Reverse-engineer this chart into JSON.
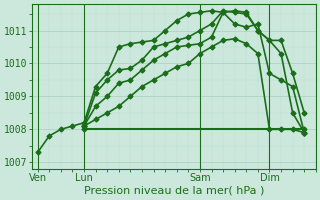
{
  "bg_color": "#cce8dc",
  "grid_color_major": "#aacfbf",
  "grid_color_minor": "#bbddd0",
  "line_color": "#1a6e1a",
  "xlabel": "Pression niveau de la mer( hPa )",
  "xlabel_fontsize": 8,
  "ylim": [
    1006.8,
    1011.8
  ],
  "yticks": [
    1007,
    1008,
    1009,
    1010,
    1011
  ],
  "tick_fontsize": 7,
  "xtick_labels": [
    "Ven",
    "Lun",
    "Sam",
    "Dim"
  ],
  "xtick_positions": [
    0,
    4,
    14,
    20
  ],
  "vline_positions": [
    0,
    4,
    14,
    20
  ],
  "xlim": [
    -0.5,
    24
  ],
  "series": [
    {
      "x": [
        0,
        1,
        2,
        3,
        4,
        5,
        6,
        7,
        8,
        9,
        10,
        11,
        12,
        13,
        14,
        15,
        16,
        17,
        18,
        19,
        20,
        21,
        22,
        23
      ],
      "y": [
        1007.3,
        1007.8,
        1008.0,
        1008.1,
        1008.2,
        1009.3,
        1009.7,
        1010.5,
        1010.6,
        1010.65,
        1010.7,
        1011.0,
        1011.3,
        1011.5,
        1011.55,
        1011.6,
        1011.55,
        1011.2,
        1011.1,
        1011.2,
        1009.7,
        1009.5,
        1009.3,
        1007.9
      ],
      "marker": "D",
      "markersize": 2.5,
      "linewidth": 1.2
    },
    {
      "x": [
        4,
        5,
        6,
        7,
        8,
        9,
        10,
        11,
        12,
        13,
        14,
        15,
        16,
        17,
        18,
        19,
        20,
        21,
        22,
        23
      ],
      "y": [
        1008.1,
        1009.1,
        1009.5,
        1009.8,
        1009.85,
        1010.1,
        1010.5,
        1010.6,
        1010.7,
        1010.8,
        1011.0,
        1011.2,
        1011.6,
        1011.55,
        1011.5,
        1011.0,
        1010.7,
        1010.7,
        1009.7,
        1008.5
      ],
      "marker": "D",
      "markersize": 2.5,
      "linewidth": 1.2
    },
    {
      "x": [
        4,
        5,
        6,
        7,
        8,
        9,
        10,
        11,
        12,
        13,
        14,
        15,
        16,
        17,
        18,
        19,
        20,
        21,
        22,
        23
      ],
      "y": [
        1008.1,
        1008.7,
        1009.0,
        1009.4,
        1009.5,
        1009.8,
        1010.1,
        1010.3,
        1010.5,
        1010.55,
        1010.6,
        1010.8,
        1011.55,
        1011.6,
        1011.55,
        1011.0,
        1010.7,
        1010.3,
        1008.5,
        1007.9
      ],
      "marker": "D",
      "markersize": 2.5,
      "linewidth": 1.2
    },
    {
      "x": [
        4,
        5,
        6,
        7,
        8,
        9,
        10,
        11,
        12,
        13,
        14,
        15,
        16,
        17,
        18,
        19,
        20,
        21,
        22,
        23
      ],
      "y": [
        1008.1,
        1008.3,
        1008.5,
        1008.7,
        1009.0,
        1009.3,
        1009.5,
        1009.7,
        1009.9,
        1010.0,
        1010.3,
        1010.5,
        1010.7,
        1010.75,
        1010.6,
        1010.3,
        1008.0,
        1008.0,
        1008.0,
        1007.9
      ],
      "marker": "D",
      "markersize": 2.5,
      "linewidth": 1.2
    },
    {
      "x": [
        4,
        23
      ],
      "y": [
        1008.0,
        1008.0
      ],
      "marker": "D",
      "markersize": 2.5,
      "linewidth": 1.5
    }
  ]
}
